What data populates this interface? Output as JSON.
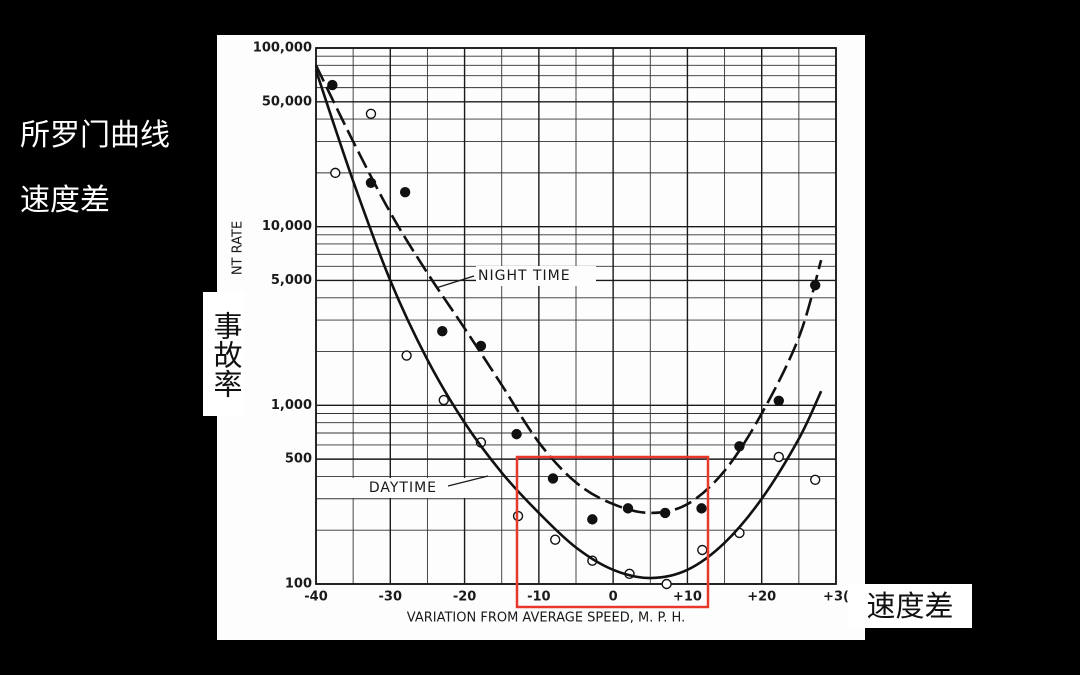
{
  "slide": {
    "title": "所罗门曲线",
    "subtitle": "速度差",
    "y_note": "事故率",
    "x_note": "速度差"
  },
  "chart_data": {
    "type": "scatter",
    "xlabel": "VARIATION FROM AVERAGE SPEED, M. P. H.",
    "ylabel": "NT RATE",
    "annotations": [
      "NIGHT TIME",
      "DAYTIME"
    ],
    "log_y": true,
    "grid": true,
    "xlim": [
      -40,
      30
    ],
    "ylim": [
      100,
      100000
    ],
    "xticks": [
      -40,
      -30,
      -20,
      -10,
      0,
      {
        "value": 10,
        "label": "+10"
      },
      {
        "value": 20,
        "label": "+20"
      },
      {
        "value": 30,
        "label": "+3("
      }
    ],
    "x_minor_ticks": [
      -35,
      -25,
      -15,
      -5,
      5,
      15,
      25
    ],
    "yticks": [
      100,
      500,
      {
        "value": 1000,
        "label": "1,000"
      },
      {
        "value": 5000,
        "label": "5,000"
      },
      {
        "value": 10000,
        "label": "10,000"
      },
      {
        "value": 50000,
        "label": "50,000"
      },
      {
        "value": 100000,
        "label": "100,000"
      }
    ],
    "y_minor_ticks": [
      200,
      300,
      400,
      600,
      700,
      800,
      900,
      2000,
      3000,
      4000,
      6000,
      7000,
      8000,
      9000,
      20000,
      30000,
      40000,
      60000,
      70000,
      80000,
      90000
    ],
    "series": [
      {
        "marker": "filled",
        "color": "#111111",
        "x": [
          -37.8,
          -32.6,
          -28,
          -23,
          -17.8,
          -13,
          -8.1,
          -2.8,
          2,
          7,
          11.9,
          17,
          22.3,
          27.2
        ],
        "values": [
          62000,
          17600,
          15600,
          2600,
          2150,
          690,
          390,
          230,
          265,
          250,
          265,
          590,
          1060,
          4700
        ]
      },
      {
        "marker": "open",
        "color": "#111111",
        "x": [
          -37.4,
          -32.6,
          -27.8,
          -22.8,
          -17.8,
          -12.8,
          -7.8,
          -2.8,
          2.2,
          7.2,
          12,
          17,
          22.3,
          27.2
        ],
        "values": [
          20000,
          42800,
          1900,
          1070,
          620,
          240,
          177,
          135,
          114,
          100,
          155,
          193,
          514,
          383
        ]
      },
      {
        "name": "NIGHT TIME",
        "marker": "line",
        "dashed": true,
        "color": "#111111",
        "x": [
          -40,
          -35,
          -30,
          -25,
          -20,
          -15,
          -10,
          -5,
          0,
          5,
          10,
          15,
          20,
          25,
          28
        ],
        "values": [
          80000,
          30000,
          12000,
          5500,
          2700,
          1300,
          620,
          370,
          280,
          250,
          280,
          430,
          900,
          2400,
          6500
        ]
      },
      {
        "name": "DAYTIME",
        "marker": "line",
        "dashed": false,
        "color": "#111111",
        "x": [
          -40,
          -35,
          -30,
          -25,
          -20,
          -15,
          -10,
          -5,
          0,
          5,
          10,
          15,
          20,
          25,
          28
        ],
        "values": [
          75000,
          18000,
          5000,
          1800,
          800,
          420,
          250,
          160,
          120,
          108,
          120,
          170,
          300,
          650,
          1200
        ]
      }
    ]
  }
}
